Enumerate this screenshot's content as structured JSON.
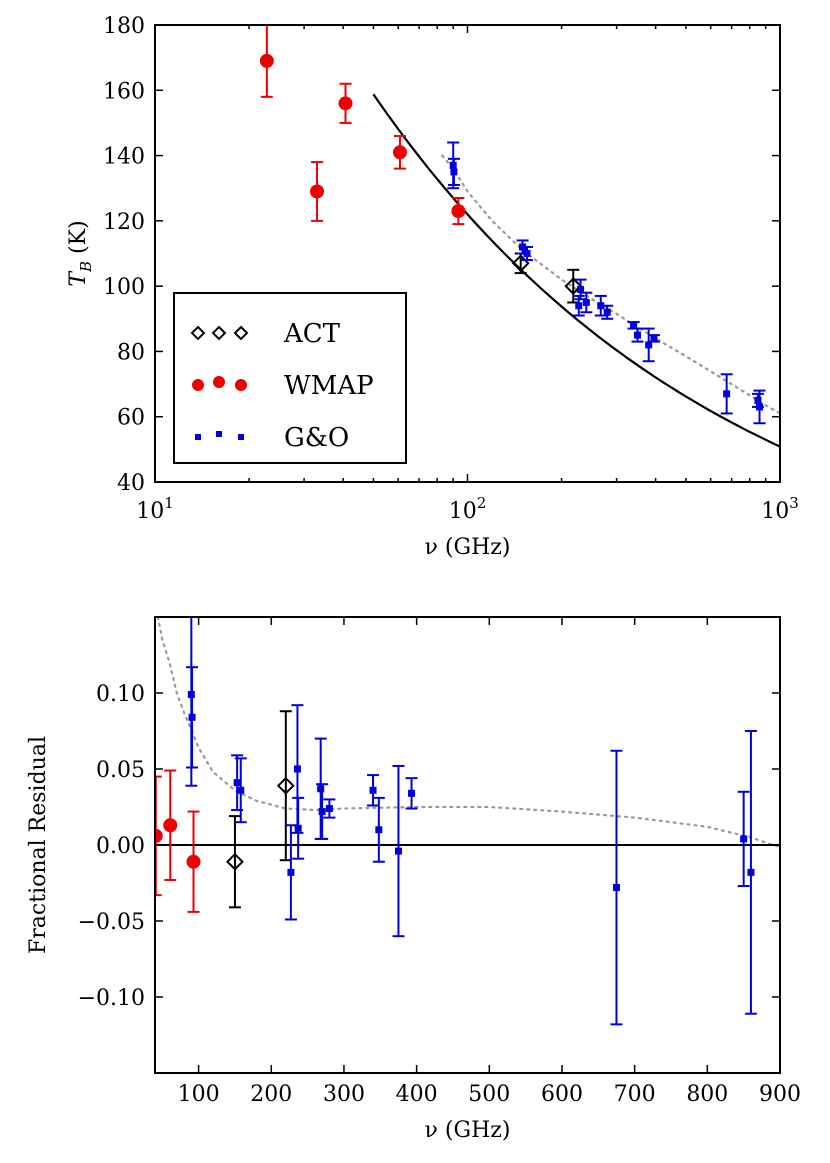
{
  "chart_data": [
    {
      "id": "brightness-temperature",
      "type": "scatter",
      "x_scale": "log",
      "xlim": [
        10,
        1000
      ],
      "ylim": [
        40,
        180
      ],
      "xlabel": "ν (GHz)",
      "ylabel_main": "T",
      "ylabel_sub": "B",
      "ylabel_unit": " (K)",
      "x_tick_values": [
        10,
        100,
        1000
      ],
      "x_tick_bases": [
        "10",
        "10",
        "10"
      ],
      "x_tick_exponents": [
        "1",
        "2",
        "3"
      ],
      "y_ticks": [
        40,
        60,
        80,
        100,
        120,
        140,
        160,
        180
      ],
      "y_tick_labels": [
        "40",
        "60",
        "80",
        "100",
        "120",
        "140",
        "160",
        "180"
      ],
      "legend": {
        "position": "center-left",
        "entries": [
          {
            "label": "ACT",
            "series": "ACT"
          },
          {
            "label": "WMAP",
            "series": "WMAP"
          },
          {
            "label": "G&O",
            "series": "G&O"
          }
        ]
      },
      "series": [
        {
          "name": "ACT",
          "marker": "diamond",
          "color": "#000000",
          "points": [
            {
              "x": 148,
              "y": 107,
              "err": 3
            },
            {
              "x": 218,
              "y": 100,
              "err": 5
            }
          ]
        },
        {
          "name": "WMAP",
          "marker": "circle",
          "color": "#ee0000",
          "points": [
            {
              "x": 22.8,
              "y": 169,
              "err": 11
            },
            {
              "x": 33,
              "y": 129,
              "err": 9
            },
            {
              "x": 40.7,
              "y": 156,
              "err": 6
            },
            {
              "x": 60.8,
              "y": 141,
              "err": 5
            },
            {
              "x": 93.5,
              "y": 123,
              "err": 4
            }
          ]
        },
        {
          "name": "G&O",
          "marker": "square",
          "color": "#0000dd",
          "points": [
            {
              "x": 90,
              "y": 137,
              "err": 7
            },
            {
              "x": 90.5,
              "y": 135,
              "err": 4
            },
            {
              "x": 150,
              "y": 112,
              "err": 2
            },
            {
              "x": 155,
              "y": 110,
              "err": 2
            },
            {
              "x": 227,
              "y": 94,
              "err": 3
            },
            {
              "x": 230,
              "y": 99,
              "err": 3
            },
            {
              "x": 240,
              "y": 95,
              "err": 3
            },
            {
              "x": 267,
              "y": 94,
              "err": 3
            },
            {
              "x": 280,
              "y": 92,
              "err": 2
            },
            {
              "x": 340,
              "y": 88,
              "err": 1
            },
            {
              "x": 350,
              "y": 85,
              "err": 2
            },
            {
              "x": 380,
              "y": 82,
              "err": 5
            },
            {
              "x": 395,
              "y": 84,
              "err": 1
            },
            {
              "x": 675,
              "y": 67,
              "err": 6
            },
            {
              "x": 850,
              "y": 65,
              "err": 2
            },
            {
              "x": 860,
              "y": 63,
              "err": 5
            }
          ]
        }
      ],
      "fit_curve": {
        "name": "model fit",
        "style": "solid",
        "color": "#000000",
        "x_range": [
          50,
          1000
        ],
        "amplitude_at_100GHz": 122,
        "index": -0.38
      },
      "reference_curve": {
        "name": "previous model",
        "style": "dotted",
        "color": "#999999",
        "points": [
          [
            83,
            140
          ],
          [
            90,
            136
          ],
          [
            100,
            129
          ],
          [
            120,
            120
          ],
          [
            150,
            111
          ],
          [
            200,
            102
          ],
          [
            250,
            96
          ],
          [
            300,
            91.5
          ],
          [
            400,
            84
          ],
          [
            500,
            78.5
          ],
          [
            700,
            70
          ],
          [
            900,
            63.5
          ],
          [
            1000,
            61
          ]
        ]
      }
    },
    {
      "id": "fractional-residual",
      "type": "scatter",
      "x_scale": "linear",
      "xlim": [
        40,
        900
      ],
      "ylim": [
        -0.15,
        0.15
      ],
      "xlabel": "ν (GHz)",
      "ylabel": "Fractional Residual",
      "x_ticks": [
        100,
        200,
        300,
        400,
        500,
        600,
        700,
        800,
        900
      ],
      "x_tick_labels": [
        "100",
        "200",
        "300",
        "400",
        "500",
        "600",
        "700",
        "800",
        "900"
      ],
      "y_ticks": [
        -0.1,
        -0.05,
        0.0,
        0.05,
        0.1
      ],
      "y_tick_labels": [
        "−0.10",
        "−0.05",
        "0.00",
        "0.05",
        "0.10"
      ],
      "zero_line": true,
      "series": [
        {
          "name": "ACT",
          "marker": "diamond",
          "color": "#000000",
          "points": [
            {
              "x": 150,
              "y": -0.011,
              "err": 0.03
            },
            {
              "x": 220,
              "y": 0.039,
              "err": 0.049
            }
          ]
        },
        {
          "name": "WMAP",
          "marker": "circle",
          "color": "#ee0000",
          "points": [
            {
              "x": 41,
              "y": 0.006,
              "err": 0.039
            },
            {
              "x": 61,
              "y": 0.013,
              "err": 0.036
            },
            {
              "x": 93,
              "y": -0.011,
              "err": 0.033
            }
          ]
        },
        {
          "name": "G&O",
          "marker": "square",
          "color": "#0000dd",
          "points": [
            {
              "x": 90,
              "y": 0.099,
              "err": 0.06
            },
            {
              "x": 91,
              "y": 0.084,
              "err": 0.033
            },
            {
              "x": 153,
              "y": 0.041,
              "err": 0.018
            },
            {
              "x": 158,
              "y": 0.036,
              "err": 0.021
            },
            {
              "x": 227,
              "y": -0.018,
              "err": 0.031
            },
            {
              "x": 236,
              "y": 0.05,
              "err": 0.042
            },
            {
              "x": 237,
              "y": 0.011,
              "err": 0.02
            },
            {
              "x": 268,
              "y": 0.037,
              "err": 0.033
            },
            {
              "x": 270,
              "y": 0.022,
              "err": 0.018
            },
            {
              "x": 280,
              "y": 0.024,
              "err": 0.006
            },
            {
              "x": 340,
              "y": 0.036,
              "err": 0.01
            },
            {
              "x": 348,
              "y": 0.01,
              "err": 0.021
            },
            {
              "x": 375,
              "y": -0.004,
              "err": 0.056
            },
            {
              "x": 393,
              "y": 0.034,
              "err": 0.01
            },
            {
              "x": 675,
              "y": -0.028,
              "err": 0.09
            },
            {
              "x": 850,
              "y": 0.004,
              "err": 0.031
            },
            {
              "x": 860,
              "y": -0.018,
              "err": 0.093
            }
          ]
        }
      ],
      "reference_curve": {
        "name": "previous model residual",
        "style": "dotted",
        "color": "#999999",
        "points": [
          [
            44,
            0.15
          ],
          [
            50,
            0.135
          ],
          [
            60,
            0.12
          ],
          [
            70,
            0.1
          ],
          [
            80,
            0.087
          ],
          [
            90,
            0.076
          ],
          [
            100,
            0.064
          ],
          [
            120,
            0.048
          ],
          [
            150,
            0.036
          ],
          [
            180,
            0.029
          ],
          [
            220,
            0.024
          ],
          [
            260,
            0.023
          ],
          [
            300,
            0.024
          ],
          [
            400,
            0.025
          ],
          [
            500,
            0.025
          ],
          [
            600,
            0.022
          ],
          [
            700,
            0.018
          ],
          [
            800,
            0.012
          ],
          [
            860,
            0.005
          ],
          [
            890,
            0.0
          ],
          [
            900,
            -0.001
          ]
        ]
      }
    }
  ]
}
